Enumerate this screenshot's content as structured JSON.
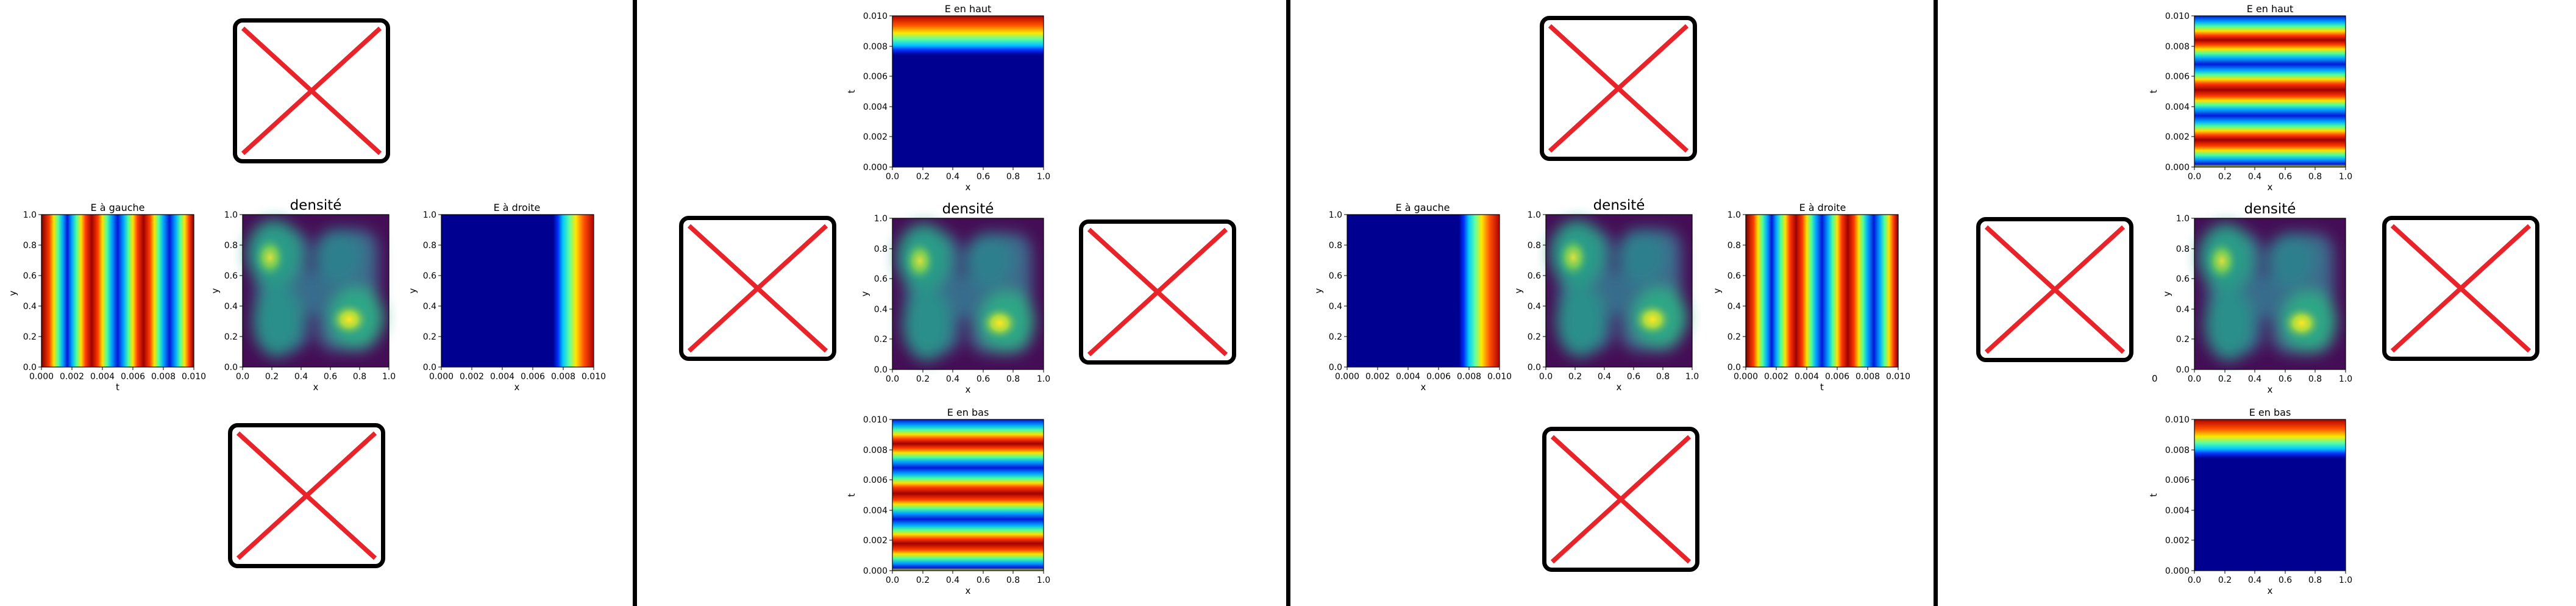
{
  "ticks": {
    "unit": [
      "0.0",
      "0.2",
      "0.4",
      "0.6",
      "0.8",
      "1.0"
    ],
    "t": [
      "0.000",
      "0.002",
      "0.004",
      "0.006",
      "0.008",
      "0.010"
    ]
  },
  "labels": {
    "x": "x",
    "y": "y",
    "t": "t"
  },
  "titles": {
    "gauche": "E à gauche",
    "droite": "E à droite",
    "haut": "E en haut",
    "bas": "E en bas",
    "densite": "densité"
  },
  "stray_zero": "0",
  "colors": {
    "cross": "#e8232a",
    "frame": "#000000"
  }
}
